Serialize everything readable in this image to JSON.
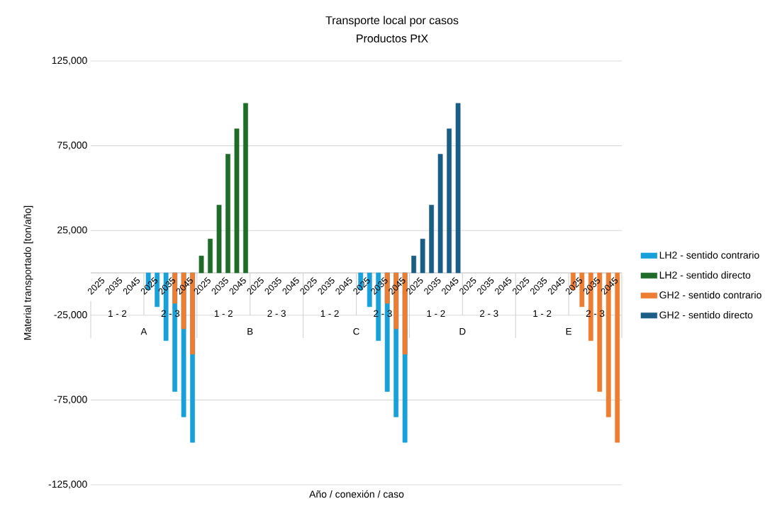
{
  "chart_data": {
    "type": "bar",
    "title": "Transporte local por casos",
    "subtitle": "Productos PtX",
    "xlabel": "Año / conexión / caso",
    "ylabel": "Material transportado [ton/año]",
    "categories": [
      "2025",
      null,
      "2035",
      null,
      "2045",
      null,
      "2025",
      null,
      "2035",
      null,
      "2045",
      null,
      "2025",
      null,
      "2035",
      null,
      "2045",
      null,
      "2025",
      null,
      "2035",
      null,
      "2045",
      null,
      "2025",
      null,
      "2035",
      null,
      "2045",
      null,
      "2025",
      null,
      "2035",
      null,
      "2045",
      null,
      "2025",
      null,
      "2035",
      null,
      "2045",
      null,
      "2025",
      null,
      "2035",
      null,
      "2045",
      null,
      "2025",
      null,
      "2035",
      null,
      "2045",
      null,
      "2025",
      null,
      "2035",
      null,
      "2045",
      null
    ],
    "series": [
      {
        "name": "LH2 - sentido contrario",
        "color": "#17a1d8",
        "values": [
          null,
          null,
          null,
          null,
          null,
          null,
          -10000,
          -20000,
          -40000,
          -70000,
          -85000,
          -100000,
          null,
          null,
          null,
          null,
          null,
          null,
          null,
          null,
          null,
          null,
          null,
          null,
          null,
          null,
          null,
          null,
          null,
          null,
          -10000,
          -20000,
          -40000,
          -70000,
          -85000,
          -100000,
          null,
          null,
          null,
          null,
          null,
          null,
          null,
          null,
          null,
          null,
          null,
          null,
          null,
          null,
          null,
          null,
          null,
          null,
          null,
          null,
          null,
          null,
          null,
          null
        ]
      },
      {
        "name": "LH2 - sentido directo",
        "color": "#1e6b2a",
        "values": [
          null,
          null,
          null,
          null,
          null,
          null,
          null,
          null,
          null,
          null,
          null,
          null,
          10000,
          20000,
          40000,
          70000,
          85000,
          100000,
          null,
          null,
          null,
          null,
          null,
          null,
          null,
          null,
          null,
          null,
          null,
          null,
          null,
          null,
          null,
          null,
          null,
          null,
          null,
          null,
          null,
          null,
          null,
          null,
          null,
          null,
          null,
          null,
          null,
          null,
          null,
          null,
          null,
          null,
          null,
          null,
          null,
          null,
          null,
          null,
          null,
          null
        ]
      },
      {
        "name": "GH2 - sentido contrario",
        "color": "#ed7d31",
        "values": [
          null,
          null,
          null,
          null,
          null,
          null,
          null,
          null,
          null,
          -18000,
          -33000,
          -48000,
          null,
          null,
          null,
          null,
          null,
          null,
          null,
          null,
          null,
          null,
          null,
          null,
          null,
          null,
          null,
          null,
          null,
          null,
          null,
          null,
          null,
          -18000,
          -33000,
          -48000,
          null,
          null,
          null,
          null,
          null,
          null,
          null,
          null,
          null,
          null,
          null,
          null,
          null,
          null,
          null,
          null,
          null,
          null,
          -10000,
          -20000,
          -40000,
          -70000,
          -85000,
          -100000
        ]
      },
      {
        "name": "GH2 - sentido directo",
        "color": "#1a5e85",
        "values": [
          null,
          null,
          null,
          null,
          null,
          null,
          null,
          null,
          null,
          null,
          null,
          null,
          null,
          null,
          null,
          null,
          null,
          null,
          null,
          null,
          null,
          null,
          null,
          null,
          null,
          null,
          null,
          null,
          null,
          null,
          null,
          null,
          null,
          null,
          null,
          null,
          10000,
          20000,
          40000,
          70000,
          85000,
          100000,
          null,
          null,
          null,
          null,
          null,
          null,
          null,
          null,
          null,
          null,
          null,
          null,
          null,
          null,
          null,
          null,
          null,
          null
        ]
      }
    ],
    "ylim": [
      -125000,
      125000
    ],
    "yticks": [
      {
        "value": -125000,
        "label": "-125,000"
      },
      {
        "value": -75000,
        "label": "-75,000"
      },
      {
        "value": -25000,
        "label": "-25,000"
      },
      {
        "value": 25000,
        "label": "25,000"
      },
      {
        "value": 75000,
        "label": "75,000"
      },
      {
        "value": 125000,
        "label": "125,000"
      }
    ],
    "annotations": [
      "1 - 2",
      "2 - 3",
      "1 - 2",
      "2 - 3",
      "1 - 2",
      "2 - 3",
      "1 - 2",
      "2 - 3",
      "1 - 2",
      "2 - 3",
      "A",
      "B",
      "C",
      "D",
      "E"
    ],
    "grid": "y",
    "legend": "right"
  }
}
